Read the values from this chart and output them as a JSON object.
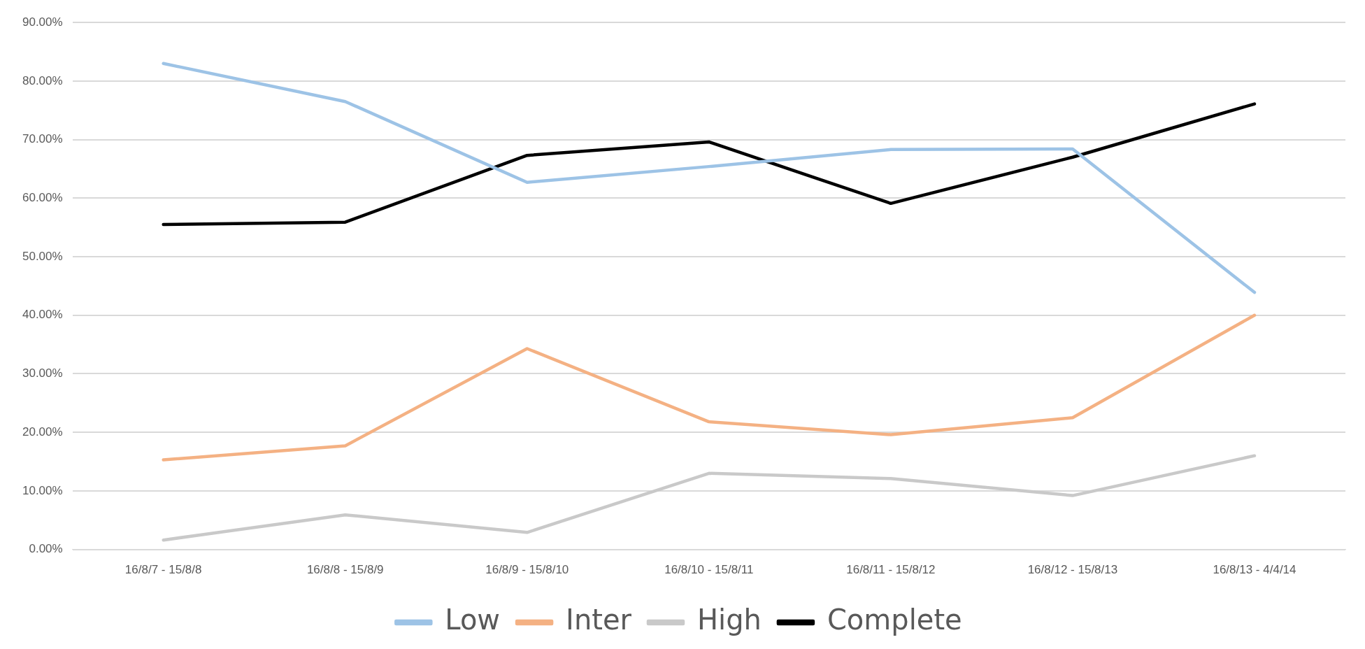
{
  "chart_data": {
    "type": "line",
    "categories": [
      "16/8/7 - 15/8/8",
      "16/8/8 - 15/8/9",
      "16/8/9 - 15/8/10",
      "16/8/10 - 15/8/11",
      "16/8/11 - 15/8/12",
      "16/8/12 - 15/8/13",
      "16/8/13 - 4/4/14"
    ],
    "series": [
      {
        "name": "Low",
        "color": "#9dc3e6",
        "values": [
          83.0,
          76.5,
          62.7,
          65.4,
          68.3,
          68.4,
          43.9
        ]
      },
      {
        "name": "Inter",
        "color": "#f4b183",
        "values": [
          15.3,
          17.7,
          34.3,
          21.8,
          19.6,
          22.5,
          40.0
        ]
      },
      {
        "name": "High",
        "color": "#c9c9c9",
        "values": [
          1.6,
          5.9,
          2.9,
          13.0,
          12.1,
          9.2,
          16.0
        ]
      },
      {
        "name": "Complete",
        "color": "#000000",
        "values": [
          55.5,
          55.9,
          67.3,
          69.6,
          59.1,
          67.0,
          76.1
        ]
      }
    ],
    "ylim": [
      0,
      90
    ],
    "yticks": [
      {
        "value": 0,
        "label": "0.00%"
      },
      {
        "value": 10,
        "label": "10.00%"
      },
      {
        "value": 20,
        "label": "20.00%"
      },
      {
        "value": 30,
        "label": "30.00%"
      },
      {
        "value": 40,
        "label": "40.00%"
      },
      {
        "value": 50,
        "label": "50.00%"
      },
      {
        "value": 60,
        "label": "60.00%"
      },
      {
        "value": 70,
        "label": "70.00%"
      },
      {
        "value": 80,
        "label": "80.00%"
      },
      {
        "value": 90,
        "label": "90.00%"
      }
    ],
    "grid": "y",
    "legend": "bottom",
    "marker": "none",
    "line_style": "solid"
  }
}
